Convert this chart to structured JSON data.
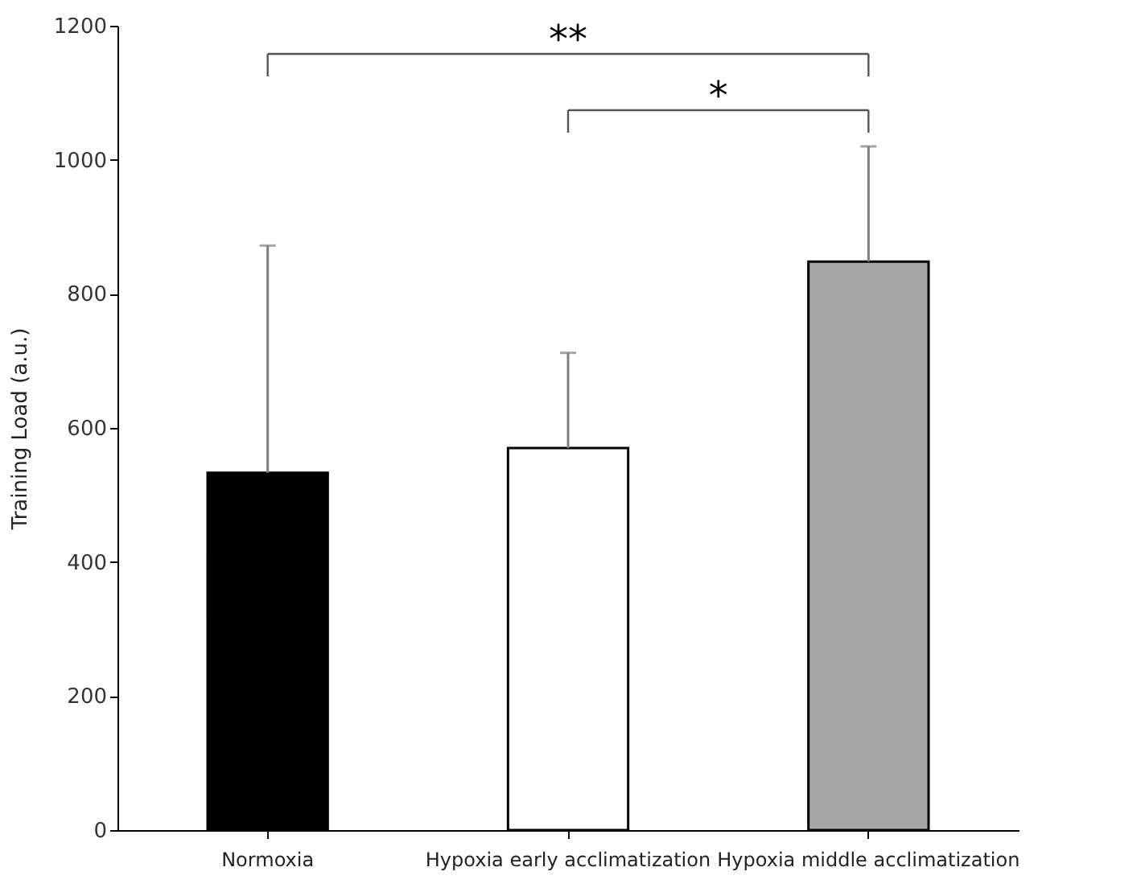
{
  "chart_data": {
    "type": "bar",
    "ylabel": "Training Load (a.u.)",
    "categories": [
      "Normoxia",
      "Hypoxia early acclimatization",
      "Hypoxia middle acclimatization"
    ],
    "values": [
      533,
      570,
      848
    ],
    "colors": [
      "#000000",
      "#ffffff",
      "#a6a6a6"
    ],
    "errors": [
      [
        533,
        872
      ],
      [
        570,
        712
      ],
      [
        848,
        1020
      ]
    ],
    "ylim": [
      0,
      1200
    ],
    "yticks": [
      0,
      200,
      400,
      600,
      800,
      {
        "value": 1000,
        "label": "1000"
      },
      {
        "value": 1200,
        "label": "1200"
      }
    ],
    "grid": false,
    "annotations": [
      "**",
      "*"
    ]
  }
}
